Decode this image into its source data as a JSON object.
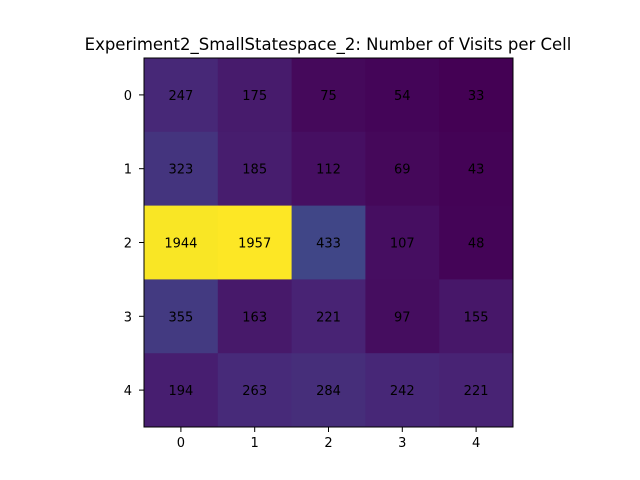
{
  "chart_data": {
    "type": "heatmap",
    "title": "Experiment2_SmallStatespace_2: Number of Visits per Cell",
    "xlabel": "",
    "ylabel": "",
    "x_ticks": [
      "0",
      "1",
      "2",
      "3",
      "4"
    ],
    "y_ticks": [
      "0",
      "1",
      "2",
      "3",
      "4"
    ],
    "values": [
      [
        247,
        175,
        75,
        54,
        33
      ],
      [
        323,
        185,
        112,
        69,
        43
      ],
      [
        1944,
        1957,
        433,
        107,
        48
      ],
      [
        355,
        163,
        221,
        97,
        155
      ],
      [
        194,
        263,
        284,
        242,
        221
      ]
    ],
    "colormap": "viridis",
    "vmin": 33,
    "vmax": 1957,
    "annotation_color": "#000000",
    "grid": false
  }
}
